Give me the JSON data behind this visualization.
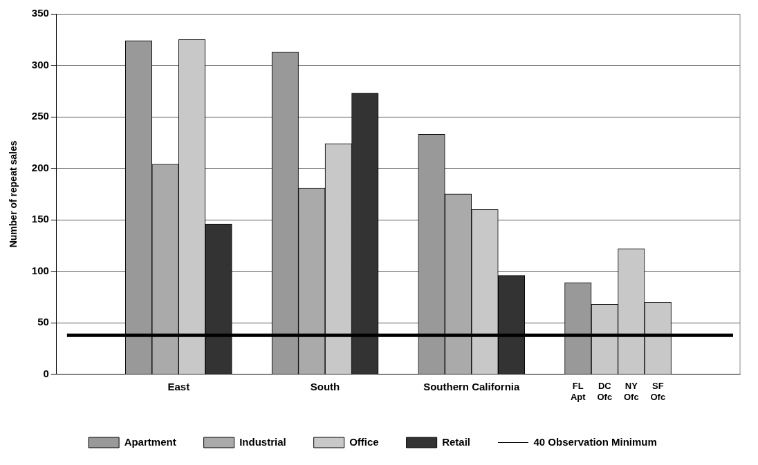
{
  "chart_data": {
    "type": "bar",
    "ylabel": "Number of repeat sales",
    "categories": [
      "East",
      "South",
      "Southern California",
      "FL\nApt",
      "DC\nOfc",
      "NY\nOfc",
      "SF\nOfc"
    ],
    "series": [
      {
        "name": "Apartment",
        "color": "#999999",
        "values": [
          324,
          313,
          233,
          89,
          null,
          null,
          null
        ]
      },
      {
        "name": "Industrial",
        "color": "#aaaaaa",
        "values": [
          204,
          181,
          175,
          null,
          null,
          null,
          null
        ]
      },
      {
        "name": "Office",
        "color": "#c8c8c8",
        "values": [
          325,
          224,
          160,
          null,
          68,
          122,
          70
        ]
      },
      {
        "name": "Retail",
        "color": "#333333",
        "values": [
          146,
          273,
          96,
          null,
          null,
          null,
          null
        ]
      }
    ],
    "ylim": [
      0,
      350
    ],
    "yticks": [
      0,
      50,
      100,
      150,
      200,
      250,
      300,
      350
    ],
    "ref_lines": [
      {
        "axis": "y",
        "value": 38,
        "label": "40 Observation Minimum",
        "color": "#000000",
        "line_style": "solid"
      }
    ],
    "grid": "y",
    "legend": "bottom"
  }
}
